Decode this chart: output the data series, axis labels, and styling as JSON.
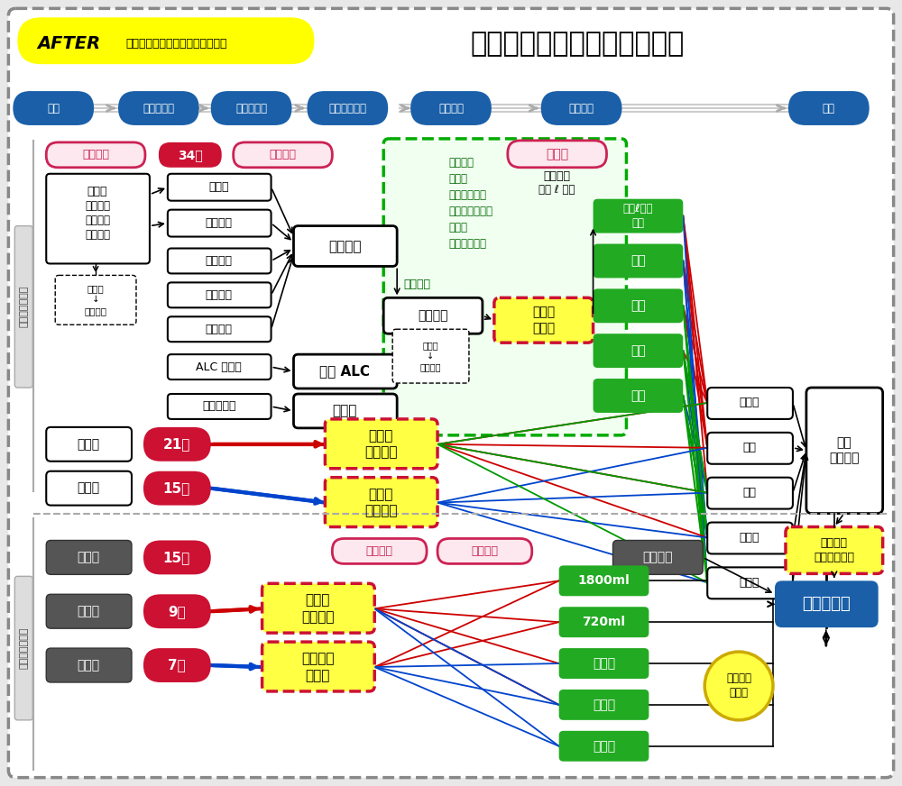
{
  "title": "酒造メーカー様での原価構成",
  "after_text": "AFTER",
  "after_sub": "ハートコンピューターの原価計算",
  "bg_color": "#e8e8e8",
  "flow_nodes": [
    "精米",
    "原料受払簿",
    "仕込配合表",
    "もろみ経過簿",
    "検定せん",
    "ろ過火入",
    "詰口"
  ],
  "node_color": "#1a5fa8",
  "section_top_label": "製造原価報告書",
  "section_bot_label": "詰口原価報告書",
  "label_jissai": "実際単価",
  "label_34": "34％",
  "label_idohei": "移動平均",
  "box_genryohi": [
    "原料費",
    "原料玄米",
    "購入数量",
    "購入単価"
  ],
  "box_komenu": "米ぬか\n↓\n副産物に",
  "box_nyusuu": "受入数",
  "box_nyutan": "受入単価",
  "box_hakumai": "原料白米",
  "box_kounyu1": "購入数量",
  "box_kounyu2": "購入単価",
  "box_alc": "ALC 移動簿",
  "box_ukeharai": "原料受払簿",
  "box_tounyu": "投入実績",
  "box_tenkaALC": "添加 ALC",
  "box_nyusanntou": "乳酸等",
  "box_genzai": "製成数量",
  "dashed_items": [
    "製成予定",
    "必要米",
    "製成見込数量",
    "仕込配合表詳細",
    "米品種",
    "購入予定価格"
  ],
  "box_genryougoukei": "原料合計",
  "box_kasudasu": "拍数量\n↓\n副産物に",
  "box_yosan": "予算値",
  "label_ekishu": "液酒原価",
  "label_ekishu2": "液酒 ℓ 単価",
  "box_shikomi": "仕込別\n酒種別",
  "sake_green": [
    "イ号",
    "ロ号",
    "八号",
    "ニ号",
    "ホ号"
  ],
  "sake_right": [
    "大吟醸",
    "吟醸",
    "純米",
    "本醸造",
    "普通酒"
  ],
  "box_kura": "蔵内\n歩合計算",
  "box_fukuza": "複雑調合\nトレース蔵内",
  "box_jinkenhi_top": "人件費",
  "pct_jinkenhi_top": "21％",
  "box_kansetsu_top": "間接費",
  "pct_kansetsu_top": "15％",
  "box_sakushu": "酒種別\n作業負荷",
  "box_hiyou": "費用別\n配賦基準",
  "box_zairyo": "材料費",
  "pct_zairyo": "15％",
  "box_jinkenhi_bot": "人件費",
  "pct_jinkenhi_bot": "9％",
  "box_kansetsu_bot": "間接費",
  "pct_kansetsu_bot": "7％",
  "label_jissai2": "実際単価",
  "label_heikinkado": "平均稼働",
  "box_shizai": "資材価格",
  "box_yoki": "容器別\n作業負荷",
  "box_bin": "瓶形状別\n効率性",
  "bottle_types": [
    "1800ml",
    "720ml",
    "パック",
    "手詰め",
    "手作業"
  ],
  "box_seihin": "製品別原価",
  "circle_jinkenhi": "人件費を\n的確に",
  "green_color": "#22aa22",
  "yellow_color": "#ffff00",
  "orange_color": "#e8a000",
  "blue_color": "#1a5fa8",
  "red_color": "#cc1133",
  "pink_bg": "#fce8ee",
  "pink_border": "#cc2255",
  "dark_gray": "#555555",
  "mid_gray": "#888888"
}
